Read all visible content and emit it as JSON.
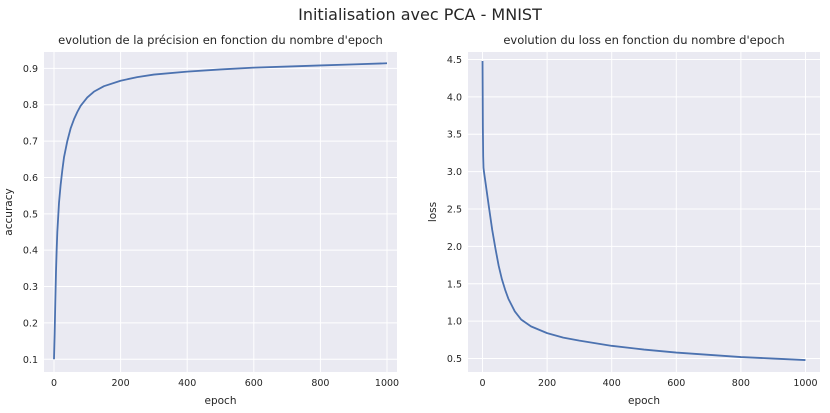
{
  "figure": {
    "suptitle": "Initialisation avec PCA - MNIST"
  },
  "chart_data": [
    {
      "type": "line",
      "title": "evolution de la précision en fonction du nombre d'epoch",
      "xlabel": "epoch",
      "ylabel": "accuracy",
      "xlim": [
        -30,
        1030
      ],
      "ylim": [
        0.065,
        0.945
      ],
      "xticks": [
        0,
        200,
        400,
        600,
        800,
        1000
      ],
      "yticks": [
        0.1,
        0.2,
        0.3,
        0.4,
        0.5,
        0.6,
        0.7,
        0.8,
        0.9
      ],
      "grid": true,
      "line_color": "#4c72b0",
      "background": "#eaeaf2",
      "series": [
        {
          "x": [
            0,
            2,
            4,
            6,
            8,
            10,
            15,
            20,
            25,
            30,
            40,
            50,
            60,
            70,
            80,
            100,
            120,
            150,
            200,
            250,
            300,
            400,
            500,
            600,
            700,
            800,
            900,
            1000
          ],
          "y": [
            0.1,
            0.17,
            0.26,
            0.34,
            0.4,
            0.45,
            0.53,
            0.58,
            0.62,
            0.655,
            0.7,
            0.735,
            0.76,
            0.78,
            0.797,
            0.82,
            0.836,
            0.851,
            0.866,
            0.876,
            0.883,
            0.891,
            0.897,
            0.902,
            0.905,
            0.908,
            0.911,
            0.914
          ]
        }
      ]
    },
    {
      "type": "line",
      "title": "evolution du loss en fonction du nombre d'epoch",
      "xlabel": "epoch",
      "ylabel": "loss",
      "xlim": [
        -45,
        1045
      ],
      "ylim": [
        0.32,
        4.6
      ],
      "xticks": [
        0,
        200,
        400,
        600,
        800,
        1000
      ],
      "yticks": [
        0.5,
        1.0,
        1.5,
        2.0,
        2.5,
        3.0,
        3.5,
        4.0,
        4.5
      ],
      "grid": true,
      "line_color": "#4c72b0",
      "background": "#eaeaf2",
      "series": [
        {
          "x": [
            0,
            1,
            2,
            3,
            5,
            10,
            20,
            30,
            40,
            50,
            60,
            70,
            80,
            100,
            120,
            150,
            200,
            250,
            300,
            400,
            500,
            600,
            700,
            800,
            900,
            1000
          ],
          "y": [
            4.48,
            3.6,
            3.2,
            3.05,
            2.98,
            2.83,
            2.52,
            2.22,
            1.97,
            1.74,
            1.56,
            1.42,
            1.3,
            1.13,
            1.02,
            0.93,
            0.84,
            0.78,
            0.74,
            0.67,
            0.62,
            0.58,
            0.55,
            0.52,
            0.5,
            0.48
          ]
        }
      ]
    }
  ]
}
